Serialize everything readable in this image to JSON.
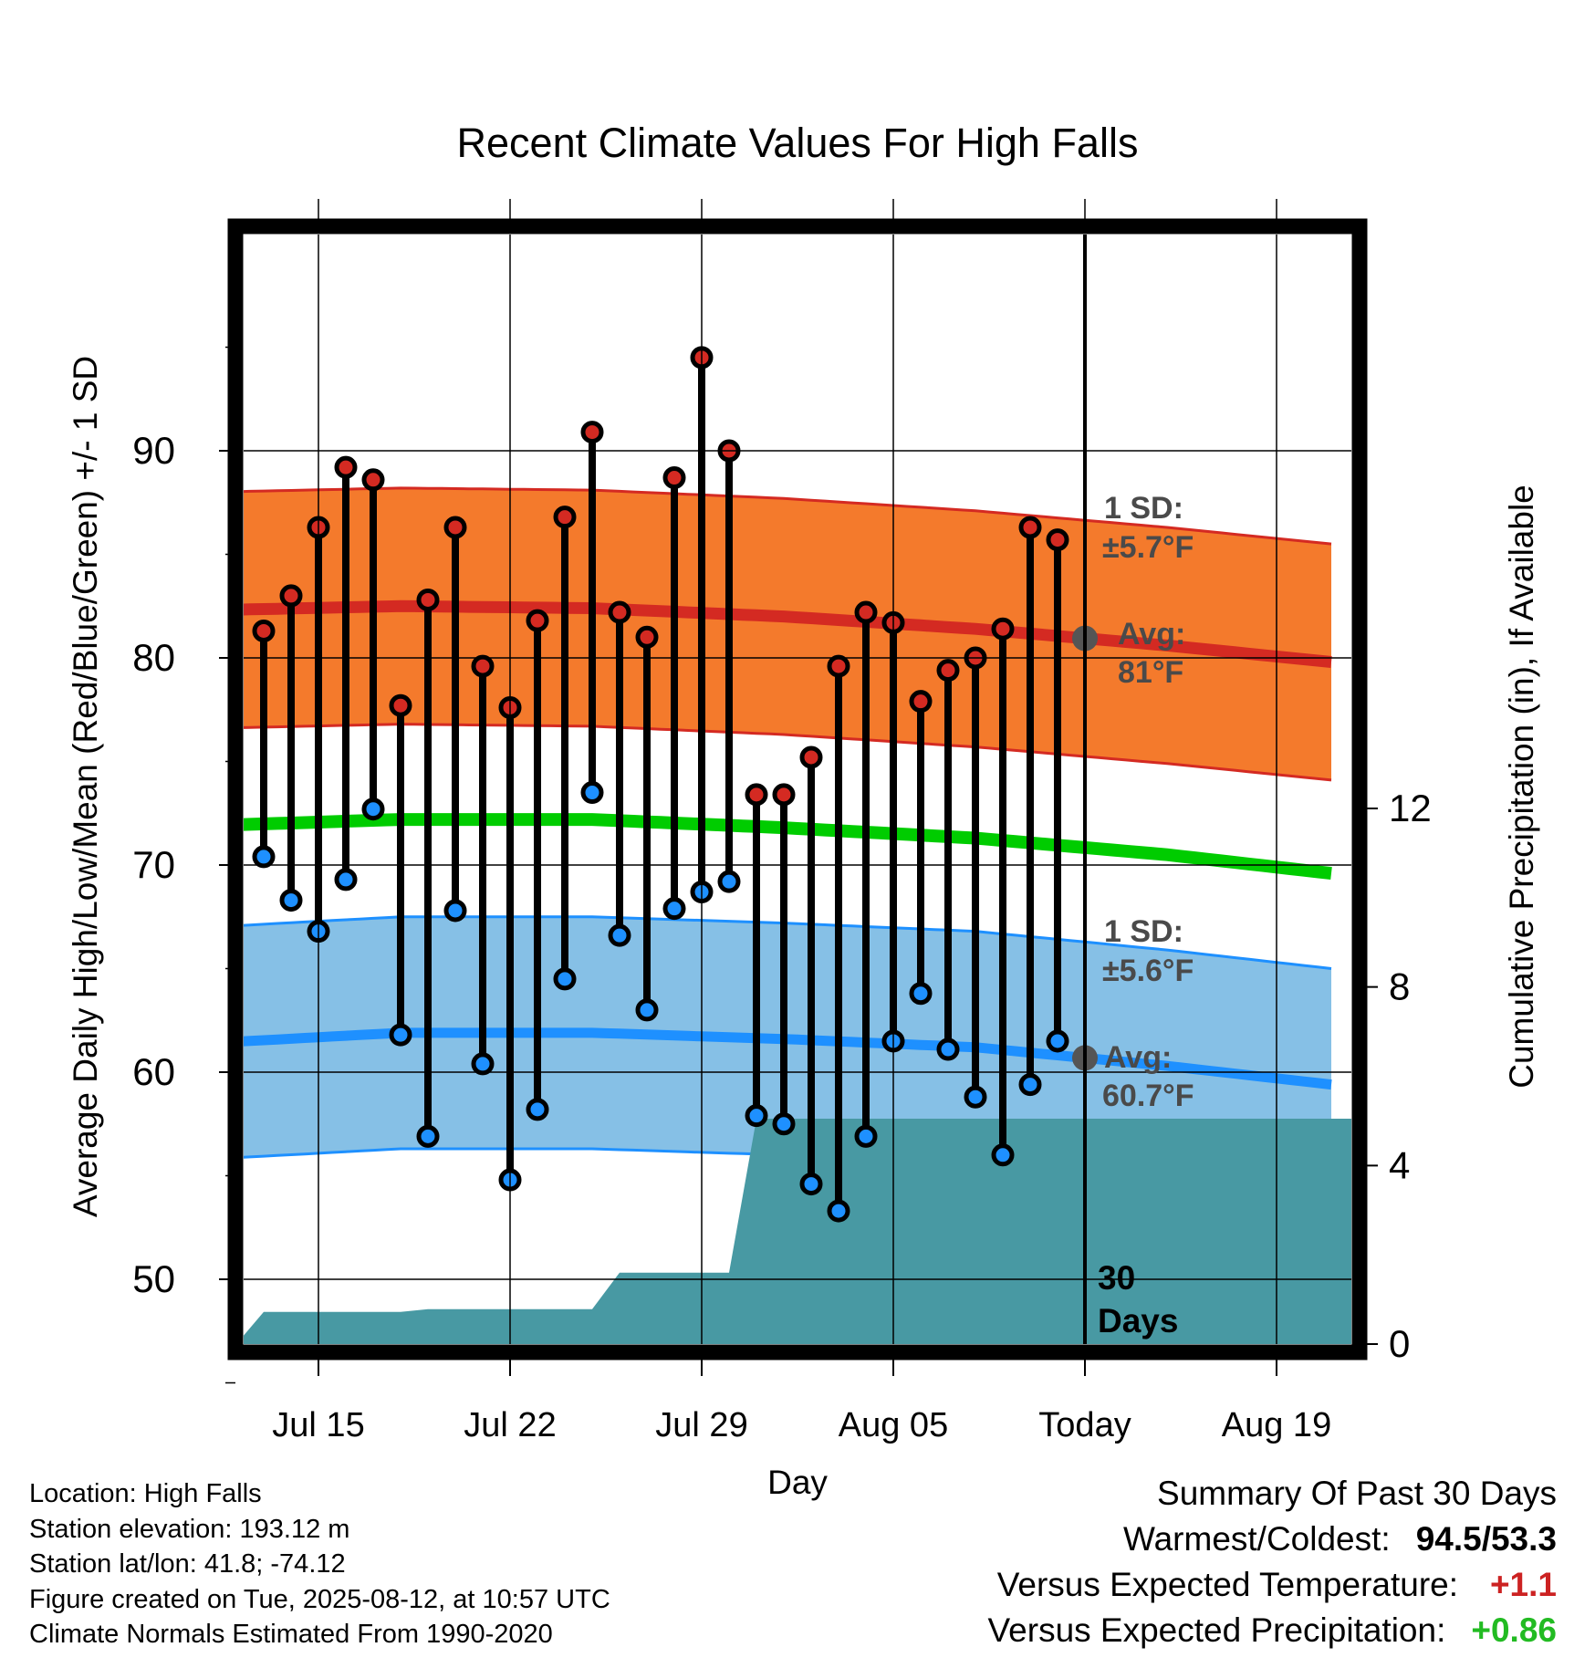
{
  "title": "Recent Climate Values For High Falls",
  "xlabel": "Day",
  "ylabel_left": "Average Daily High/Low/Mean (Red/Blue/Green) +/- 1 SD",
  "ylabel_right": "Cumulative Precipitation (in), If Available",
  "annotations": {
    "high_sd": [
      "1 SD:",
      "±5.7°F"
    ],
    "high_avg": [
      "Avg:",
      "81°F"
    ],
    "low_sd": [
      "1 SD:",
      "±5.6°F"
    ],
    "low_avg": [
      "Avg:",
      "60.7°F"
    ],
    "days_label": [
      "30",
      "Days"
    ]
  },
  "info": {
    "location": "Location: High Falls",
    "elevation": "Station elevation: 193.12 m",
    "latlon": "Station lat/lon: 41.8; -74.12",
    "created": "Figure created on Tue, 2025-08-12, at 10:57 UTC",
    "normals": "Climate Normals Estimated From 1990-2020"
  },
  "summary": {
    "heading": "Summary Of Past 30 Days",
    "warm_cold_label": "Warmest/Coldest:",
    "warm_cold_value": "94.5/53.3",
    "temp_label": "Versus Expected Temperature:",
    "temp_value": "+1.1",
    "temp_color": "#cc2222",
    "precip_label": "Versus Expected Precipitation:",
    "precip_value": "+0.86",
    "precip_color": "#22bb22"
  },
  "chart_data": {
    "type": "line",
    "x_axis": {
      "range_days": [
        "Jul 11",
        "Aug 21"
      ],
      "tick_labels": [
        "Jul 15",
        "Jul 22",
        "Jul 29",
        "Aug 05",
        "Today",
        "Aug 19"
      ],
      "tick_days": [
        "Jul 15",
        "Jul 22",
        "Jul 29",
        "Aug 05",
        "Aug 12",
        "Aug 19"
      ],
      "today": "Aug 12"
    },
    "y_left": {
      "range": [
        45,
        99
      ],
      "ticks": [
        50,
        60,
        70,
        80,
        90
      ],
      "minor_step": 5,
      "unit": "°F"
    },
    "y_right": {
      "range": [
        0,
        25.75
      ],
      "ticks": [
        0,
        4,
        8,
        12
      ],
      "unit": "in"
    },
    "daily": {
      "dates": [
        "Jul 13",
        "Jul 14",
        "Jul 15",
        "Jul 16",
        "Jul 17",
        "Jul 18",
        "Jul 19",
        "Jul 20",
        "Jul 21",
        "Jul 22",
        "Jul 23",
        "Jul 24",
        "Jul 25",
        "Jul 26",
        "Jul 27",
        "Jul 28",
        "Jul 29",
        "Jul 30",
        "Jul 31",
        "Aug 01",
        "Aug 02",
        "Aug 03",
        "Aug 04",
        "Aug 05",
        "Aug 06",
        "Aug 07",
        "Aug 08",
        "Aug 09",
        "Aug 10",
        "Aug 11"
      ],
      "high": [
        81.3,
        83.0,
        86.3,
        89.2,
        88.6,
        77.7,
        82.8,
        86.3,
        79.6,
        77.6,
        81.8,
        86.8,
        90.9,
        82.2,
        81.0,
        88.7,
        94.5,
        90.0,
        73.4,
        73.4,
        75.2,
        79.6,
        82.2,
        81.7,
        77.9,
        79.4,
        80.0,
        81.4,
        86.3,
        85.7
      ],
      "low": [
        70.4,
        68.3,
        66.8,
        69.3,
        72.7,
        61.8,
        56.9,
        67.8,
        60.4,
        54.8,
        58.2,
        64.5,
        73.5,
        66.6,
        63.0,
        67.9,
        68.7,
        69.2,
        57.9,
        57.5,
        54.6,
        53.3,
        56.9,
        61.5,
        63.8,
        61.1,
        58.8,
        56.0,
        59.4,
        61.5
      ]
    },
    "normals": {
      "high_mean": {
        "dates": [
          "Jul 11",
          "Jul 18",
          "Jul 25",
          "Aug 01",
          "Aug 08",
          "Aug 15",
          "Aug 21"
        ],
        "values": [
          82.3,
          82.5,
          82.4,
          82.0,
          81.4,
          80.6,
          79.8
        ]
      },
      "high_sd": 5.7,
      "low_mean": {
        "dates": [
          "Jul 11",
          "Jul 18",
          "Jul 25",
          "Aug 01",
          "Aug 08",
          "Aug 15",
          "Aug 21"
        ],
        "values": [
          61.4,
          61.9,
          61.9,
          61.6,
          61.2,
          60.3,
          59.4
        ]
      },
      "low_sd": 5.6,
      "mean": {
        "dates": [
          "Jul 11",
          "Jul 18",
          "Jul 25",
          "Aug 01",
          "Aug 08",
          "Aug 15",
          "Aug 21"
        ],
        "values": [
          71.9,
          72.2,
          72.2,
          71.8,
          71.3,
          70.5,
          69.6
        ]
      }
    },
    "precip_cumulative": {
      "dates": [
        "Jul 12",
        "Jul 13",
        "Jul 18",
        "Jul 19",
        "Jul 25",
        "Jul 26",
        "Jul 30",
        "Jul 31",
        "Aug 01",
        "Aug 21"
      ],
      "values": [
        0,
        0.72,
        0.72,
        0.78,
        0.78,
        1.6,
        1.6,
        5.05,
        5.05,
        5.05
      ]
    },
    "colors": {
      "high_band": "#f47a2c",
      "high_band_edge": "#d42a22",
      "high_mean": "#d42a22",
      "low_band": "#86c0e6",
      "low_band_edge": "#1e90ff",
      "low_mean": "#1e90ff",
      "mean": "#00cc00",
      "precip": "#4899a3",
      "high_dot": "#d42a22",
      "low_dot": "#1e90ff",
      "today_dot": "#555555"
    }
  }
}
